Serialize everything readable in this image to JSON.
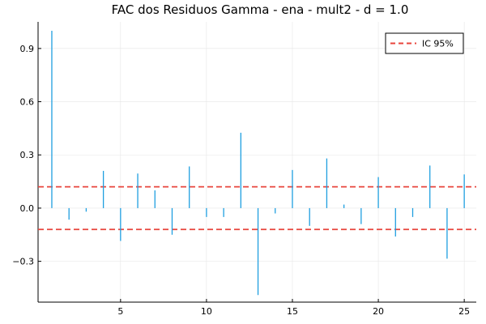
{
  "chart_data": {
    "type": "bar",
    "title": "FAC dos Residuos  Gamma - ena - mult2 - d = 1.0",
    "xlabel": "",
    "ylabel": "",
    "x": [
      1,
      2,
      3,
      4,
      5,
      6,
      7,
      8,
      9,
      10,
      11,
      12,
      13,
      14,
      15,
      16,
      17,
      18,
      19,
      20,
      21,
      22,
      23,
      24,
      25
    ],
    "values": [
      1.0,
      -0.065,
      -0.02,
      0.21,
      -0.185,
      0.195,
      0.1,
      -0.15,
      0.235,
      -0.05,
      -0.05,
      0.425,
      -0.49,
      -0.03,
      0.215,
      -0.1,
      0.28,
      0.02,
      -0.09,
      0.175,
      -0.16,
      -0.05,
      0.24,
      -0.285,
      0.19
    ],
    "series_color": "#1f9fe0",
    "xlim": [
      0.2,
      25.7
    ],
    "ylim": [
      -0.53,
      1.05
    ],
    "xticks": [
      5,
      10,
      15,
      20,
      25
    ],
    "xtick_labels": [
      "5",
      "10",
      "15",
      "20",
      "25"
    ],
    "yticks": [
      -0.3,
      0.0,
      0.3,
      0.6,
      0.9
    ],
    "ytick_labels": [
      "−0.3",
      "0.0",
      "0.3",
      "0.6",
      "0.9"
    ],
    "ci": {
      "upper": 0.12,
      "lower": -0.12,
      "color": "#e8453c",
      "label": "IC 95%"
    },
    "legend_position": "top-right",
    "grid": true
  }
}
